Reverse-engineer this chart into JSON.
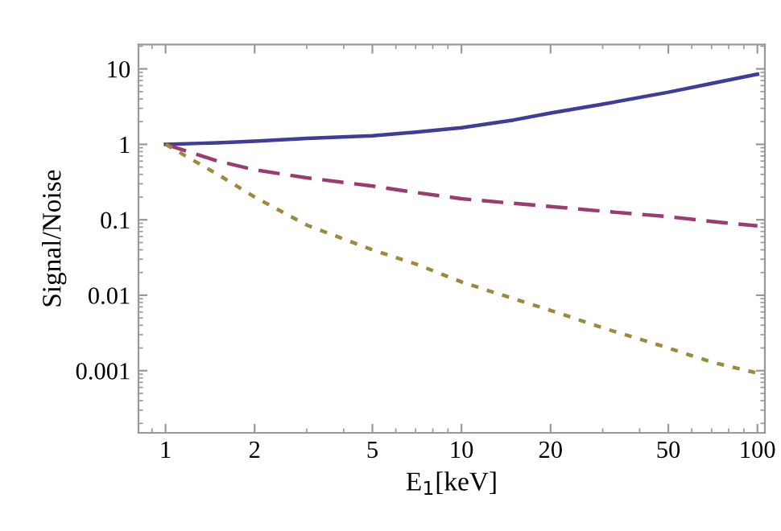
{
  "chart_data": {
    "type": "line",
    "xlabel": "E$_{1}$[keV]",
    "ylabel": "Signal/Noise",
    "log": "xy",
    "xlim": [
      0.81,
      106
    ],
    "ylim": [
      0.00015,
      21
    ],
    "xticks": [
      1,
      2,
      5,
      10,
      20,
      50,
      100
    ],
    "yticks": [
      10,
      1,
      0.1,
      0.01,
      0.001
    ],
    "grid": false,
    "marker": "none",
    "x": [
      1,
      1.5,
      2,
      3,
      5,
      7,
      10,
      15,
      20,
      30,
      50,
      70,
      100
    ],
    "series": [
      {
        "color": "#3f3d99",
        "line_style": "solid",
        "values": [
          1,
          1.05,
          1.1,
          1.2,
          1.3,
          1.45,
          1.66,
          2.1,
          2.6,
          3.4,
          4.9,
          6.4,
          8.5
        ]
      },
      {
        "color": "#993d71",
        "line_style": "dashed",
        "values": [
          1,
          0.6,
          0.46,
          0.36,
          0.28,
          0.23,
          0.19,
          0.165,
          0.15,
          0.13,
          0.11,
          0.095,
          0.083
        ]
      },
      {
        "color": "#9a8a3d",
        "line_style": "dotted",
        "values": [
          1,
          0.4,
          0.2,
          0.085,
          0.04,
          0.026,
          0.015,
          0.009,
          0.0063,
          0.0037,
          0.002,
          0.0013,
          0.00093
        ]
      }
    ]
  }
}
